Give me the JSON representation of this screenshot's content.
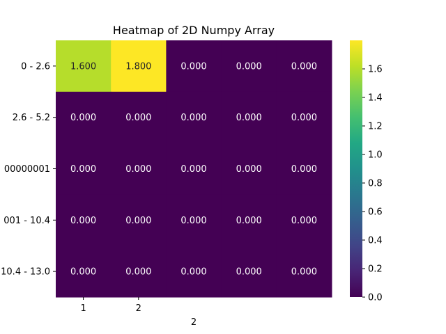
{
  "chart_data": {
    "type": "heatmap",
    "title": "Heatmap of 2D Numpy Array",
    "xlabel": "2",
    "ylabel": "",
    "x_tick_labels": [
      "1",
      "2",
      "",
      "",
      ""
    ],
    "y_tick_labels": [
      "0 - 2.6",
      "2.6 - 5.2",
      "00000001",
      "001 - 10.4",
      "10.4 - 13.0"
    ],
    "values": [
      [
        1.6,
        1.8,
        0.0,
        0.0,
        0.0
      ],
      [
        0.0,
        0.0,
        0.0,
        0.0,
        0.0
      ],
      [
        0.0,
        0.0,
        0.0,
        0.0,
        0.0
      ],
      [
        0.0,
        0.0,
        0.0,
        0.0,
        0.0
      ],
      [
        0.0,
        0.0,
        0.0,
        0.0,
        0.0
      ]
    ],
    "cell_labels": [
      [
        "1.600",
        "1.800",
        "0.000",
        "0.000",
        "0.000"
      ],
      [
        "0.000",
        "0.000",
        "0.000",
        "0.000",
        "0.000"
      ],
      [
        "0.000",
        "0.000",
        "0.000",
        "0.000",
        "0.000"
      ],
      [
        "0.000",
        "0.000",
        "0.000",
        "0.000",
        "0.000"
      ],
      [
        "0.000",
        "0.000",
        "0.000",
        "0.000",
        "0.000"
      ]
    ],
    "colormap": "viridis",
    "color_range": [
      0.0,
      1.8
    ],
    "colorbar_ticks": [
      "0.0",
      "0.2",
      "0.4",
      "0.6",
      "0.8",
      "1.0",
      "1.2",
      "1.4",
      "1.6"
    ],
    "grid": false,
    "colorbar_position": "right"
  }
}
